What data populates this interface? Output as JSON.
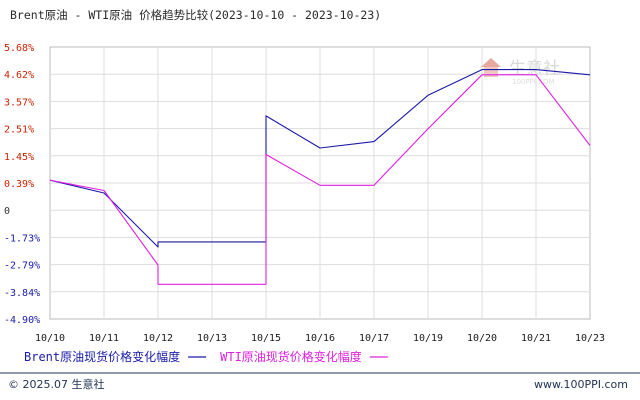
{
  "chart_data": {
    "type": "line",
    "title": "Brent原油 - WTI原油 价格趋势比较(2023-10-10 - 2023-10-23)",
    "x": [
      "10/10",
      "10/11",
      "10/12",
      "10/13",
      "10/15",
      "10/16",
      "10/17",
      "10/19",
      "10/20",
      "10/21",
      "10/23"
    ],
    "y_ticks": [
      "5.68%",
      "4.62%",
      "3.57%",
      "2.51%",
      "1.45%",
      "0.39%",
      "0",
      "-1.73%",
      "-2.79%",
      "-3.84%",
      "-4.90%"
    ],
    "ylim": [
      -4.9,
      5.68
    ],
    "grid": true,
    "legend_position": "bottom-left",
    "series": [
      {
        "name": "Brent原油现货价格变化幅度",
        "color": "#1a1aa8",
        "points": [
          [
            "10/10",
            0.5
          ],
          [
            "10/11",
            0.0
          ],
          [
            "10/12",
            -2.1
          ],
          [
            "10/12",
            -1.9
          ],
          [
            "10/13",
            -1.9
          ],
          [
            "10/15",
            -1.9
          ],
          [
            "10/15",
            3.0
          ],
          [
            "10/16",
            1.75
          ],
          [
            "10/17",
            2.0
          ],
          [
            "10/19",
            3.8
          ],
          [
            "10/20",
            4.8
          ],
          [
            "10/21",
            4.8
          ],
          [
            "10/23",
            4.6
          ]
        ]
      },
      {
        "name": "WTI原油现货价格变化幅度",
        "color": "#e020e0",
        "points": [
          [
            "10/10",
            0.5
          ],
          [
            "10/11",
            0.1
          ],
          [
            "10/12",
            -2.8
          ],
          [
            "10/12",
            -3.55
          ],
          [
            "10/13",
            -3.55
          ],
          [
            "10/15",
            -3.55
          ],
          [
            "10/15",
            1.5
          ],
          [
            "10/16",
            0.3
          ],
          [
            "10/17",
            0.3
          ],
          [
            "10/19",
            2.5
          ],
          [
            "10/20",
            4.6
          ],
          [
            "10/21",
            4.6
          ],
          [
            "10/23",
            1.85
          ]
        ]
      }
    ]
  },
  "colors": {
    "tick_positive": "#cc2200",
    "tick_negative": "#1a1aa8",
    "tick_zero": "#333333",
    "grid": "#dddddd",
    "border": "#bbbbbb",
    "footer_line": "#223355"
  },
  "watermark": {
    "text": "生意社",
    "sub": "100PPI.COM"
  },
  "footer": {
    "copyright": "© 2025.07 生意社",
    "site": "www.100PPI.com"
  }
}
